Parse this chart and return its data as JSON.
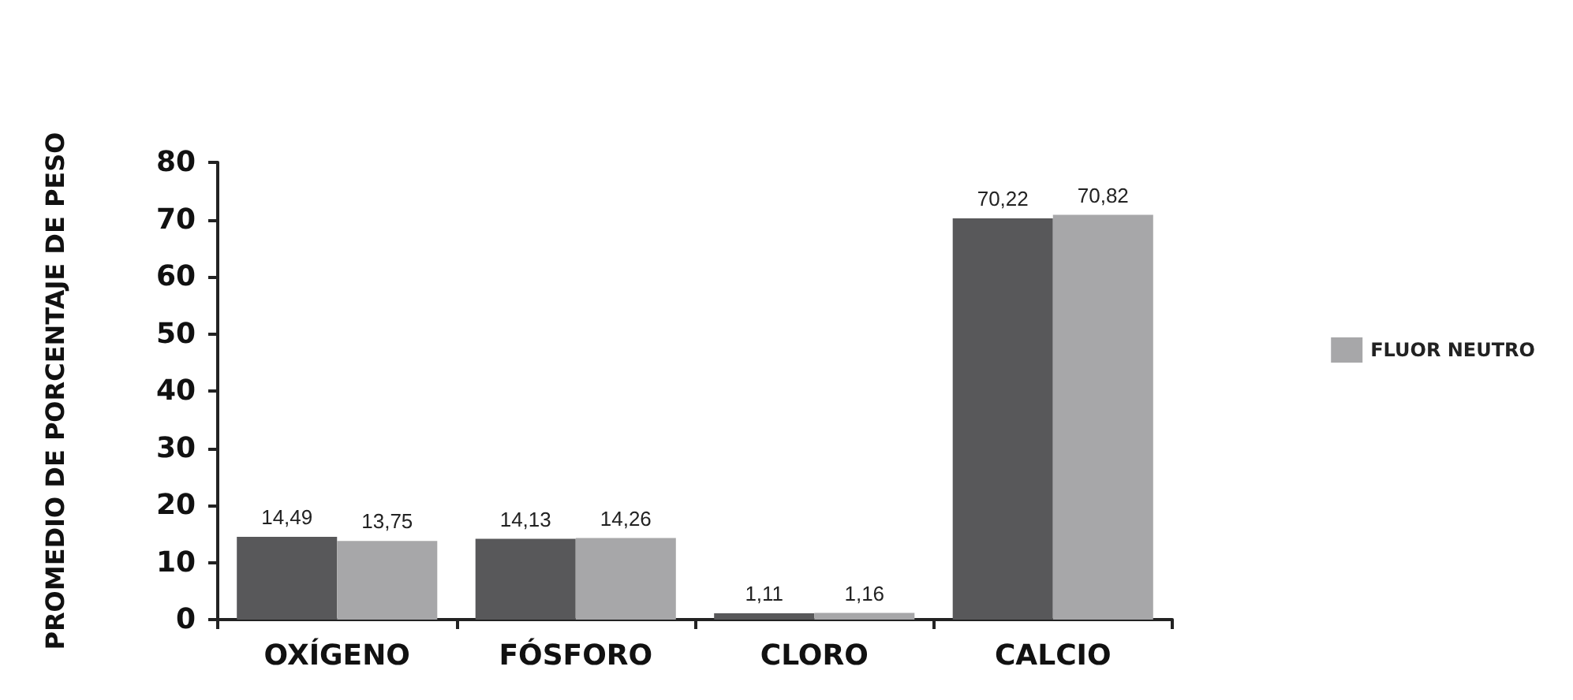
{
  "chart_data": {
    "type": "bar",
    "ylabel": "PROMEDIO DE PORCENTAJE DE PESO",
    "categories": [
      "OXÍGENO",
      "FÓSFORO",
      "CLORO",
      "CALCIO"
    ],
    "series": [
      {
        "color": "#58585a",
        "values": [
          14.49,
          14.13,
          1.11,
          70.22
        ],
        "value_labels": [
          "14,49",
          "14,13",
          "1,11",
          "70,22"
        ]
      },
      {
        "name": "FLUOR NEUTRO",
        "color": "#a7a7a9",
        "values": [
          13.75,
          14.26,
          1.16,
          70.82
        ],
        "value_labels": [
          "13,75",
          "14,26",
          "1,16",
          "70,82"
        ]
      }
    ],
    "ylim": [
      0,
      80
    ],
    "yticks": [
      0,
      10,
      20,
      30,
      40,
      50,
      60,
      70,
      80
    ],
    "grid": false,
    "legend": "right"
  }
}
